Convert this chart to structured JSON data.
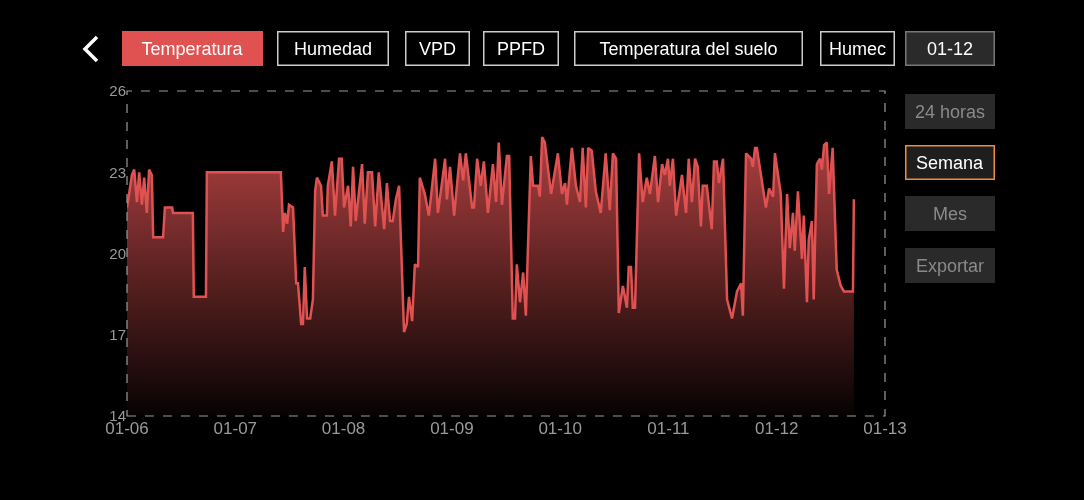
{
  "chart_data": {
    "type": "area",
    "x": [
      "--01-06T00:00",
      "--01-06T01:06",
      "--01-06T01:36",
      "--01-06T02:12",
      "--01-06T02:42",
      "--01-06T03:18",
      "--01-06T03:48",
      "--01-06T04:24",
      "--01-06T04:54",
      "--01-06T05:30",
      "--01-06T05:48",
      "--01-06T08:00",
      "--01-06T08:24",
      "--01-06T10:00",
      "--01-06T10:12",
      "--01-06T14:36",
      "--01-06T14:48",
      "--01-06T17:30",
      "--01-06T17:42",
      "--01-07T10:06",
      "--01-07T10:36",
      "--01-07T11:00",
      "--01-07T11:30",
      "--01-07T11:54",
      "--01-07T12:48",
      "--01-07T13:30",
      "--01-07T13:54",
      "--01-07T14:36",
      "--01-07T15:00",
      "--01-07T15:24",
      "--01-07T15:54",
      "--01-07T16:36",
      "--01-07T17:12",
      "--01-07T17:42",
      "--01-07T18:06",
      "--01-07T19:00",
      "--01-07T19:24",
      "--01-07T20:18",
      "--01-07T20:30",
      "--01-07T21:24",
      "--01-07T22:06",
      "--01-07T23:00",
      "--01-07T23:36",
      "--01-08T00:06",
      "--01-08T01:00",
      "--01-08T01:36",
      "--01-08T02:06",
      "--01-08T02:42",
      "--01-08T04:06",
      "--01-08T04:42",
      "--01-08T05:24",
      "--01-08T06:18",
      "--01-08T07:00",
      "--01-08T07:48",
      "--01-08T09:00",
      "--01-08T09:36",
      "--01-08T10:18",
      "--01-08T10:54",
      "--01-08T11:36",
      "--01-08T12:18",
      "--01-08T13:24",
      "--01-08T14:00",
      "--01-08T14:30",
      "--01-08T15:12",
      "--01-08T15:48",
      "--01-08T16:30",
      "--01-08T16:54",
      "--01-08T18:00",
      "--01-08T18:54",
      "--01-08T20:18",
      "--01-08T20:54",
      "--01-08T21:48",
      "--01-08T22:30",
      "--01-08T22:54",
      "--01-08T23:36",
      "--01-09T00:30",
      "--01-09T01:48",
      "--01-09T02:30",
      "--01-09T03:06",
      "--01-09T04:30",
      "--01-09T04:54",
      "--01-09T05:36",
      "--01-09T06:24",
      "--01-09T07:06",
      "--01-09T08:00",
      "--01-09T09:06",
      "--01-09T09:48",
      "--01-09T10:24",
      "--01-09T11:06",
      "--01-09T12:12",
      "--01-09T12:42",
      "--01-09T13:30",
      "--01-09T14:00",
      "--01-09T14:24",
      "--01-09T15:06",
      "--01-09T15:48",
      "--01-09T16:24",
      "--01-09T17:30",
      "--01-09T18:00",
      "--01-09T19:06",
      "--01-09T19:30",
      "--01-09T20:00",
      "--01-09T20:36",
      "--01-09T22:00",
      "--01-09T23:30",
      "--01-10T00:24",
      "--01-10T01:06",
      "--01-10T01:30",
      "--01-10T02:36",
      "--01-10T03:30",
      "--01-10T04:24",
      "--01-10T05:00",
      "--01-10T05:42",
      "--01-10T06:12",
      "--01-10T07:00",
      "--01-10T07:54",
      "--01-10T09:00",
      "--01-10T10:06",
      "--01-10T11:00",
      "--01-10T11:42",
      "--01-10T12:24",
      "--01-10T13:00",
      "--01-10T13:54",
      "--01-10T14:48",
      "--01-10T15:12",
      "--01-10T15:42",
      "--01-10T16:06",
      "--01-10T16:36",
      "--01-10T17:30",
      "--01-10T18:18",
      "--01-10T19:12",
      "--01-10T19:54",
      "--01-10T21:00",
      "--01-10T21:42",
      "--01-10T22:36",
      "--01-10T23:12",
      "--01-10T23:54",
      "--01-11T00:18",
      "--01-11T01:00",
      "--01-11T01:42",
      "--01-11T03:00",
      "--01-11T03:54",
      "--01-11T04:30",
      "--01-11T05:12",
      "--01-11T05:54",
      "--01-11T06:30",
      "--01-11T07:12",
      "--01-11T07:36",
      "--01-11T08:30",
      "--01-11T09:36",
      "--01-11T10:06",
      "--01-11T10:42",
      "--01-11T11:12",
      "--01-11T12:06",
      "--01-11T13:00",
      "--01-11T14:06",
      "--01-11T15:12",
      "--01-11T16:06",
      "--01-11T16:30",
      "--01-11T17:12",
      "--01-11T18:18",
      "--01-11T18:42",
      "--01-11T19:12",
      "--01-11T19:36",
      "--01-11T21:36",
      "--01-11T22:18",
      "--01-11T23:12",
      "--01-11T23:36",
      "--01-12T00:54",
      "--01-12T01:36",
      "--01-12T02:18",
      "--01-12T02:54",
      "--01-12T03:36",
      "--01-12T04:00",
      "--01-12T04:42",
      "--01-12T05:36",
      "--01-12T06:00",
      "--01-12T06:42",
      "--01-12T07:06",
      "--01-12T07:48",
      "--01-12T08:12",
      "--01-12T08:54",
      "--01-12T09:36",
      "--01-12T10:00",
      "--01-12T10:30",
      "--01-12T11:06",
      "--01-12T11:36",
      "--01-12T12:24",
      "--01-12T13:18",
      "--01-12T14:12",
      "--01-12T14:54",
      "--01-12T16:54",
      "--01-12T17:06"
    ],
    "values": [
      21.7,
      22.9,
      23.1,
      21.9,
      23.0,
      21.8,
      22.8,
      21.5,
      23.1,
      22.9,
      20.6,
      20.6,
      21.7,
      21.7,
      21.5,
      21.5,
      18.4,
      18.4,
      23.0,
      23.0,
      20.8,
      21.5,
      21.1,
      21.8,
      21.7,
      18.9,
      18.9,
      17.4,
      17.4,
      19.5,
      17.6,
      17.6,
      18.3,
      22.3,
      22.8,
      22.5,
      21.4,
      21.4,
      22.5,
      23.4,
      21.4,
      23.5,
      23.5,
      21.7,
      22.5,
      21.0,
      23.2,
      21.2,
      23.3,
      21.1,
      23.0,
      23.0,
      21.0,
      23.0,
      20.9,
      22.6,
      21.2,
      21.2,
      22.0,
      22.5,
      17.1,
      17.4,
      18.4,
      17.5,
      19.6,
      19.5,
      22.8,
      22.2,
      21.4,
      23.5,
      21.5,
      22.6,
      23.5,
      22.0,
      23.2,
      21.4,
      23.7,
      22.7,
      23.7,
      21.7,
      21.7,
      23.5,
      22.5,
      23.4,
      21.5,
      23.3,
      21.9,
      24.1,
      21.8,
      23.6,
      23.6,
      17.6,
      17.6,
      19.6,
      18.2,
      19.3,
      17.7,
      23.6,
      22.5,
      22.5,
      22.1,
      24.3,
      24.1,
      22.2,
      23.7,
      22.2,
      22.6,
      21.8,
      23.9,
      22.5,
      21.9,
      23.9,
      21.7,
      23.9,
      23.8,
      22.3,
      21.5,
      23.7,
      21.6,
      23.7,
      23.5,
      17.8,
      18.8,
      18.0,
      19.5,
      19.5,
      18.0,
      18.0,
      23.7,
      21.9,
      22.8,
      22.2,
      23.6,
      21.9,
      23.3,
      22.9,
      23.5,
      22.5,
      23.5,
      21.4,
      22.9,
      21.5,
      23.5,
      21.9,
      23.5,
      23.2,
      21.0,
      22.5,
      22.5,
      20.9,
      23.4,
      23.4,
      22.6,
      23.5,
      18.3,
      17.6,
      18.6,
      18.9,
      17.7,
      23.7,
      23.5,
      23.2,
      23.9,
      23.9,
      21.7,
      22.4,
      22.1,
      23.7,
      22.2,
      18.7,
      22.2,
      20.2,
      21.5,
      20.1,
      22.3,
      19.8,
      21.4,
      18.2,
      20.5,
      21.2,
      18.3,
      23.3,
      23.5,
      23.1,
      24.0,
      24.1,
      22.2,
      23.9,
      19.4,
      18.8,
      18.6,
      18.6,
      22.0
    ],
    "color": "#e05252",
    "xlim": [
      "--01-06",
      "--01-13"
    ],
    "xticks": [
      {
        "value": "--01-06",
        "label": "01-06"
      },
      {
        "value": "--01-07",
        "label": "01-07"
      },
      {
        "value": "--01-08",
        "label": "01-08"
      },
      {
        "value": "--01-09",
        "label": "01-09"
      },
      {
        "value": "--01-10",
        "label": "01-10"
      },
      {
        "value": "--01-11",
        "label": "01-11"
      },
      {
        "value": "--01-12",
        "label": "01-12"
      },
      {
        "value": "--01-13",
        "label": "01-13"
      }
    ],
    "ylim": [
      14,
      26
    ],
    "yticks": [
      14,
      17,
      20,
      23,
      26
    ],
    "grid": false,
    "marker": "none",
    "annotations": [
      "Temperatura",
      "Humedad",
      "VPD",
      "PPFD",
      "Temperatura del suelo",
      "Humec",
      "01-12",
      "24 horas",
      "Semana",
      "Mes",
      "Exportar"
    ]
  }
}
